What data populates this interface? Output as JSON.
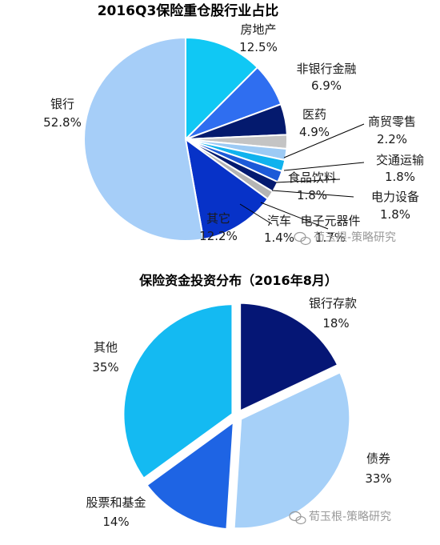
{
  "chart_data": [
    {
      "type": "pie",
      "title": "2016Q3保险重仓股行业占比",
      "slices": [
        {
          "label": "房地产",
          "value": 12.5,
          "value_label": "12.5%",
          "color": "#10c8f4"
        },
        {
          "label": "非银行金融",
          "value": 6.9,
          "value_label": "6.9%",
          "color": "#2f6ef0"
        },
        {
          "label": "医药",
          "value": 4.9,
          "value_label": "4.9%",
          "color": "#041a6e"
        },
        {
          "label": "商贸零售",
          "value": 2.2,
          "value_label": "2.2%",
          "color": "#c4c4c4"
        },
        {
          "label": "交通运输",
          "value": 1.8,
          "value_label": "1.8%",
          "color": "#9ccaf4"
        },
        {
          "label": "食品饮料",
          "value": 1.8,
          "value_label": "1.8%",
          "color": "#10b2ee"
        },
        {
          "label": "电力设备",
          "value": 1.8,
          "value_label": "1.8%",
          "color": "#1c5ad8"
        },
        {
          "label": "电子元器件",
          "value": 1.7,
          "value_label": "1.7%",
          "color": "#031a70"
        },
        {
          "label": "汽车",
          "value": 1.4,
          "value_label": "1.4%",
          "color": "#b4b4b4"
        },
        {
          "label": "其它",
          "value": 12.2,
          "value_label": "12.2%",
          "color": "#0732c8"
        },
        {
          "label": "银行",
          "value": 52.8,
          "value_label": "52.8%",
          "color": "#a6cef8"
        }
      ]
    },
    {
      "type": "pie",
      "title": "保险资金投资分布（2016年8月）",
      "slices": [
        {
          "label": "银行存款",
          "value": 18,
          "value_label": "18%",
          "color": "#051675"
        },
        {
          "label": "债券",
          "value": 33,
          "value_label": "33%",
          "color": "#a6d0f8"
        },
        {
          "label": "股票和基金",
          "value": 14,
          "value_label": "14%",
          "color": "#1e64e4"
        },
        {
          "label": "其他",
          "value": 35,
          "value_label": "35%",
          "color": "#14baf2"
        }
      ]
    }
  ],
  "watermark": {
    "text": "荀玉根-策略研究",
    "icon": "wechat-icon"
  }
}
